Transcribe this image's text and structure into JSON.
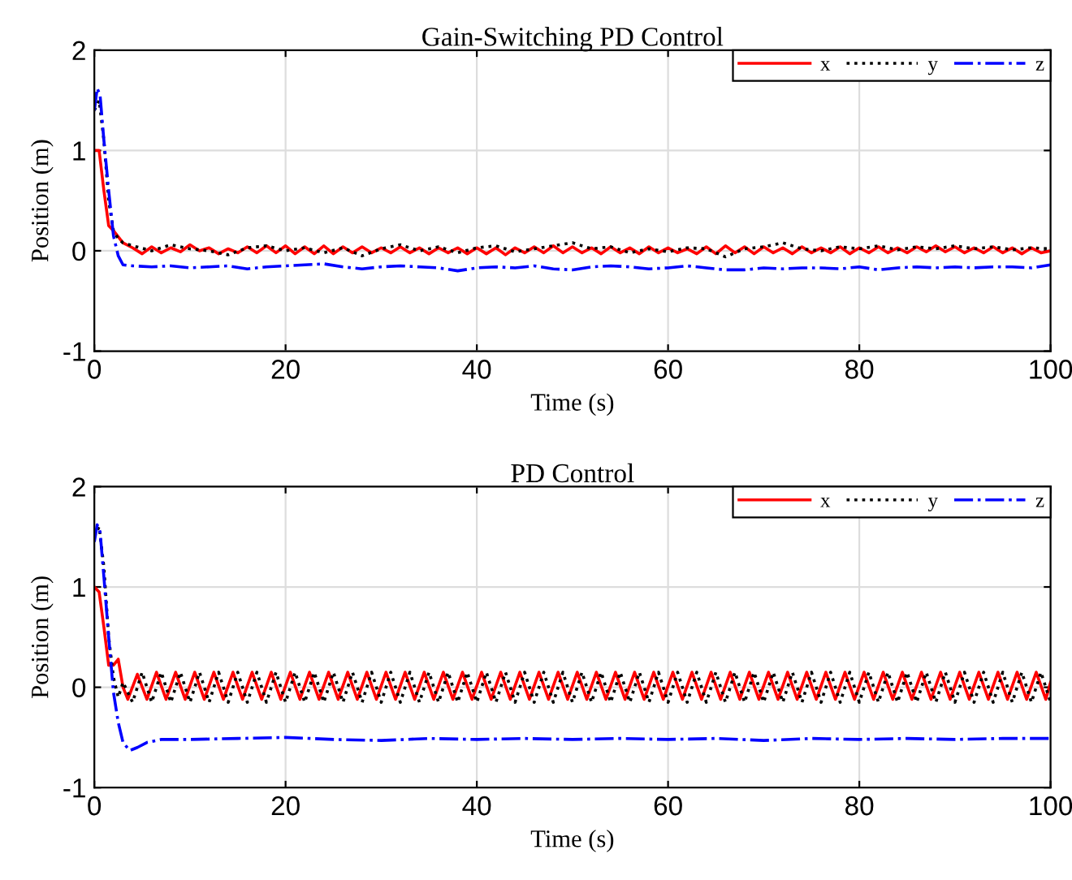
{
  "chart_data": [
    {
      "type": "line",
      "title": "Gain-Switching PD Control",
      "xlabel": "Time (s)",
      "ylabel": "Position (m)",
      "xlim": [
        0,
        100
      ],
      "ylim": [
        -1,
        2
      ],
      "xticks": [
        0,
        20,
        40,
        60,
        80,
        100
      ],
      "yticks": [
        -1,
        0,
        1,
        2
      ],
      "grid": true,
      "legend": "top right",
      "series": [
        {
          "name": "x",
          "color": "#ff0000",
          "line_style": "solid",
          "x": [
            0,
            0.5,
            1,
            1.5,
            2,
            3,
            4,
            5,
            6,
            7,
            8,
            9,
            10,
            11,
            12,
            13,
            14,
            15,
            16,
            17,
            18,
            19,
            20,
            21,
            22,
            23,
            24,
            25,
            26,
            27,
            28,
            29,
            30,
            31,
            32,
            33,
            34,
            35,
            36,
            37,
            38,
            39,
            40,
            41,
            42,
            43,
            44,
            45,
            46,
            47,
            48,
            49,
            50,
            51,
            52,
            53,
            54,
            55,
            56,
            57,
            58,
            59,
            60,
            61,
            62,
            63,
            64,
            65,
            66,
            67,
            68,
            69,
            70,
            71,
            72,
            73,
            74,
            75,
            76,
            77,
            78,
            79,
            80,
            81,
            82,
            83,
            84,
            85,
            86,
            87,
            88,
            89,
            90,
            91,
            92,
            93,
            94,
            95,
            96,
            97,
            98,
            99,
            100
          ],
          "values": [
            1,
            1,
            0.6,
            0.25,
            0.2,
            0.08,
            0.03,
            -0.03,
            0.04,
            -0.02,
            0.03,
            -0.01,
            0.06,
            0.0,
            0.03,
            -0.03,
            0.02,
            -0.02,
            0.04,
            -0.02,
            0.05,
            -0.02,
            0.05,
            -0.03,
            0.04,
            -0.03,
            0.05,
            -0.03,
            0.04,
            -0.02,
            0.04,
            -0.02,
            0.03,
            -0.02,
            0.04,
            -0.02,
            0.03,
            -0.03,
            0.03,
            -0.02,
            0.03,
            -0.03,
            0.03,
            -0.03,
            0.03,
            -0.04,
            0.03,
            -0.02,
            0.04,
            -0.02,
            0.05,
            -0.02,
            0.04,
            -0.02,
            0.03,
            -0.03,
            0.04,
            -0.02,
            0.03,
            -0.03,
            0.04,
            -0.02,
            0.03,
            -0.02,
            0.02,
            -0.03,
            0.04,
            -0.03,
            0.05,
            -0.02,
            0.04,
            -0.03,
            0.04,
            -0.02,
            0.03,
            -0.03,
            0.04,
            -0.02,
            0.03,
            -0.02,
            0.04,
            -0.03,
            0.03,
            -0.02,
            0.04,
            -0.02,
            0.03,
            -0.02,
            0.04,
            -0.01,
            0.05,
            -0.01,
            0.04,
            -0.02,
            0.03,
            -0.02,
            0.04,
            -0.02,
            0.03,
            -0.03,
            0.03,
            -0.02,
            0.0
          ]
        },
        {
          "name": "y",
          "color": "#000000",
          "line_style": "dotted",
          "x": [
            0,
            0.5,
            1,
            1.5,
            2,
            2.5,
            3,
            4,
            6,
            8,
            10,
            12,
            14,
            16,
            18,
            20,
            22,
            24,
            26,
            28,
            30,
            32,
            34,
            36,
            38,
            40,
            42,
            44,
            46,
            48,
            50,
            52,
            54,
            56,
            58,
            60,
            62,
            64,
            66,
            68,
            70,
            72,
            74,
            76,
            78,
            80,
            82,
            84,
            86,
            88,
            90,
            92,
            94,
            96,
            98,
            100
          ],
          "values": [
            1.4,
            1.5,
            1.1,
            0.5,
            0.2,
            0.12,
            0.08,
            0.05,
            0.0,
            0.06,
            0.02,
            0.0,
            -0.04,
            0.03,
            0.05,
            0.0,
            0.03,
            -0.02,
            0.03,
            -0.05,
            0.02,
            0.06,
            0.0,
            0.04,
            -0.02,
            0.03,
            0.05,
            -0.01,
            0.02,
            0.05,
            0.08,
            0.02,
            0.04,
            -0.02,
            0.02,
            -0.01,
            0.03,
            0.02,
            -0.06,
            0.02,
            0.04,
            0.08,
            0.02,
            0.0,
            0.04,
            0.02,
            0.05,
            0.01,
            0.04,
            0.02,
            0.05,
            0.02,
            0.04,
            0.01,
            0.03,
            0.02
          ]
        },
        {
          "name": "z",
          "color": "#0000ff",
          "line_style": "dashdot",
          "x": [
            0,
            0.3,
            0.6,
            1,
            1.5,
            2,
            2.5,
            3,
            4,
            6,
            8,
            10,
            12,
            14,
            16,
            18,
            20,
            22,
            24,
            26,
            28,
            30,
            32,
            34,
            36,
            38,
            40,
            42,
            44,
            46,
            48,
            50,
            52,
            54,
            56,
            58,
            60,
            62,
            64,
            66,
            68,
            70,
            72,
            74,
            76,
            78,
            80,
            82,
            84,
            86,
            88,
            90,
            92,
            94,
            96,
            98,
            100
          ],
          "values": [
            1.4,
            1.62,
            1.55,
            1.1,
            0.6,
            0.15,
            -0.05,
            -0.14,
            -0.15,
            -0.16,
            -0.15,
            -0.17,
            -0.16,
            -0.15,
            -0.18,
            -0.16,
            -0.15,
            -0.14,
            -0.13,
            -0.16,
            -0.18,
            -0.16,
            -0.15,
            -0.16,
            -0.17,
            -0.2,
            -0.17,
            -0.16,
            -0.17,
            -0.15,
            -0.18,
            -0.19,
            -0.16,
            -0.15,
            -0.16,
            -0.18,
            -0.17,
            -0.15,
            -0.17,
            -0.19,
            -0.19,
            -0.17,
            -0.18,
            -0.17,
            -0.17,
            -0.18,
            -0.16,
            -0.19,
            -0.17,
            -0.16,
            -0.17,
            -0.16,
            -0.17,
            -0.16,
            -0.16,
            -0.17,
            -0.14
          ]
        }
      ]
    },
    {
      "type": "line",
      "title": "PD Control",
      "xlabel": "Time (s)",
      "ylabel": "Position (m)",
      "xlim": [
        0,
        100
      ],
      "ylim": [
        -1,
        2
      ],
      "xticks": [
        0,
        20,
        40,
        60,
        80,
        100
      ],
      "yticks": [
        -1,
        0,
        1,
        2
      ],
      "grid": true,
      "legend": "top right",
      "series": [
        {
          "name": "x",
          "color": "#ff0000",
          "line_style": "solid",
          "x": [
            0,
            0.5,
            1,
            1.5,
            2,
            2.5,
            3,
            3.5,
            4.5,
            5.5,
            6.5,
            7.5,
            8.5,
            9.5,
            10.5,
            11.5,
            12.5,
            13.5,
            14.5,
            15.5,
            16.5,
            17.5,
            18.5,
            19.5,
            20.5,
            21.5,
            22.5,
            23.5,
            24.5,
            25.5,
            26.5,
            27.5,
            28.5,
            29.5,
            30.5,
            31.5,
            32.5,
            33.5,
            34.5,
            35.5,
            36.5,
            37.5,
            38.5,
            39.5,
            40.5,
            41.5,
            42.5,
            43.5,
            44.5,
            45.5,
            46.5,
            47.5,
            48.5,
            49.5,
            50.5,
            51.5,
            52.5,
            53.5,
            54.5,
            55.5,
            56.5,
            57.5,
            58.5,
            59.5,
            60.5,
            61.5,
            62.5,
            63.5,
            64.5,
            65.5,
            66.5,
            67.5,
            68.5,
            69.5,
            70.5,
            71.5,
            72.5,
            73.5,
            74.5,
            75.5,
            76.5,
            77.5,
            78.5,
            79.5,
            80.5,
            81.5,
            82.5,
            83.5,
            84.5,
            85.5,
            86.5,
            87.5,
            88.5,
            89.5,
            90.5,
            91.5,
            92.5,
            93.5,
            94.5,
            95.5,
            96.5,
            97.5,
            98.5,
            99.5,
            100
          ],
          "values": [
            1,
            0.95,
            0.6,
            0.22,
            0.22,
            0.28,
            0.0,
            -0.12,
            0.13,
            -0.12,
            0.15,
            -0.12,
            0.15,
            -0.12,
            0.15,
            -0.12,
            0.15,
            -0.12,
            0.15,
            -0.12,
            0.15,
            -0.12,
            0.15,
            -0.12,
            0.15,
            -0.12,
            0.15,
            -0.12,
            0.15,
            -0.12,
            0.15,
            -0.12,
            0.15,
            -0.12,
            0.15,
            -0.12,
            0.15,
            -0.12,
            0.15,
            -0.12,
            0.15,
            -0.12,
            0.15,
            -0.12,
            0.15,
            -0.12,
            0.15,
            -0.12,
            0.15,
            -0.12,
            0.15,
            -0.12,
            0.15,
            -0.12,
            0.15,
            -0.12,
            0.15,
            -0.12,
            0.15,
            -0.12,
            0.15,
            -0.12,
            0.15,
            -0.12,
            0.15,
            -0.12,
            0.15,
            -0.12,
            0.15,
            -0.12,
            0.15,
            -0.12,
            0.15,
            -0.12,
            0.15,
            -0.12,
            0.15,
            -0.12,
            0.15,
            -0.12,
            0.15,
            -0.12,
            0.15,
            -0.12,
            0.15,
            -0.12,
            0.15,
            -0.12,
            0.15,
            -0.12,
            0.15,
            -0.12,
            0.15,
            -0.12,
            0.15,
            -0.12,
            0.15,
            -0.12,
            0.15,
            -0.12,
            0.15,
            -0.12,
            0.15,
            -0.12,
            0.05
          ]
        },
        {
          "name": "y",
          "color": "#000000",
          "line_style": "dotted",
          "x": [
            0,
            0.5,
            1,
            1.5,
            2,
            2.5,
            3,
            4,
            5,
            6,
            7,
            8,
            9,
            10,
            11,
            12,
            13,
            14,
            15,
            16,
            17,
            18,
            19,
            20,
            21,
            22,
            23,
            24,
            25,
            26,
            27,
            28,
            29,
            30,
            31,
            32,
            33,
            34,
            35,
            36,
            37,
            38,
            39,
            40,
            41,
            42,
            43,
            44,
            45,
            46,
            47,
            48,
            49,
            50,
            51,
            52,
            53,
            54,
            55,
            56,
            57,
            58,
            59,
            60,
            61,
            62,
            63,
            64,
            65,
            66,
            67,
            68,
            69,
            70,
            71,
            72,
            73,
            74,
            75,
            76,
            77,
            78,
            79,
            80,
            81,
            82,
            83,
            84,
            85,
            86,
            87,
            88,
            89,
            90,
            91,
            92,
            93,
            94,
            95,
            96,
            97,
            98,
            99,
            100
          ],
          "values": [
            1.5,
            1.6,
            1.2,
            0.5,
            0.1,
            -0.1,
            0.05,
            -0.15,
            0.15,
            -0.15,
            0.15,
            -0.15,
            0.15,
            -0.15,
            0.15,
            -0.15,
            0.15,
            -0.15,
            0.15,
            -0.15,
            0.15,
            -0.15,
            0.15,
            -0.15,
            0.15,
            -0.15,
            0.15,
            -0.15,
            0.15,
            -0.15,
            0.15,
            -0.15,
            0.15,
            -0.15,
            0.15,
            -0.15,
            0.15,
            -0.15,
            0.15,
            -0.15,
            0.15,
            -0.15,
            0.15,
            -0.15,
            0.15,
            -0.15,
            0.15,
            -0.15,
            0.15,
            -0.15,
            0.15,
            -0.15,
            0.15,
            -0.15,
            0.15,
            -0.15,
            0.15,
            -0.15,
            0.15,
            -0.15,
            0.15,
            -0.15,
            0.15,
            -0.15,
            0.15,
            -0.15,
            0.15,
            -0.15,
            0.15,
            -0.15,
            0.15,
            -0.15,
            0.15,
            -0.15,
            0.15,
            -0.15,
            0.15,
            -0.15,
            0.15,
            -0.15,
            0.15,
            -0.15,
            0.15,
            -0.15,
            0.15,
            -0.15,
            0.15,
            -0.15,
            0.15,
            -0.15,
            0.15,
            -0.15,
            0.15,
            -0.15,
            0.15,
            -0.15,
            0.15,
            -0.15,
            0.15,
            -0.15,
            0.15,
            -0.15,
            0.15,
            -0.15
          ]
        },
        {
          "name": "z",
          "color": "#0000ff",
          "line_style": "dashdot",
          "x": [
            0,
            0.3,
            0.6,
            1,
            1.5,
            2,
            2.5,
            3,
            3.7,
            4.5,
            5.5,
            7,
            10,
            15,
            20,
            25,
            30,
            35,
            40,
            45,
            50,
            55,
            60,
            65,
            70,
            75,
            80,
            85,
            90,
            95,
            100
          ],
          "values": [
            1.45,
            1.62,
            1.55,
            1.1,
            0.5,
            -0.05,
            -0.35,
            -0.55,
            -0.63,
            -0.6,
            -0.55,
            -0.52,
            -0.52,
            -0.51,
            -0.5,
            -0.52,
            -0.53,
            -0.51,
            -0.52,
            -0.51,
            -0.52,
            -0.51,
            -0.52,
            -0.51,
            -0.53,
            -0.51,
            -0.52,
            -0.51,
            -0.52,
            -0.51,
            -0.51
          ]
        }
      ]
    }
  ]
}
